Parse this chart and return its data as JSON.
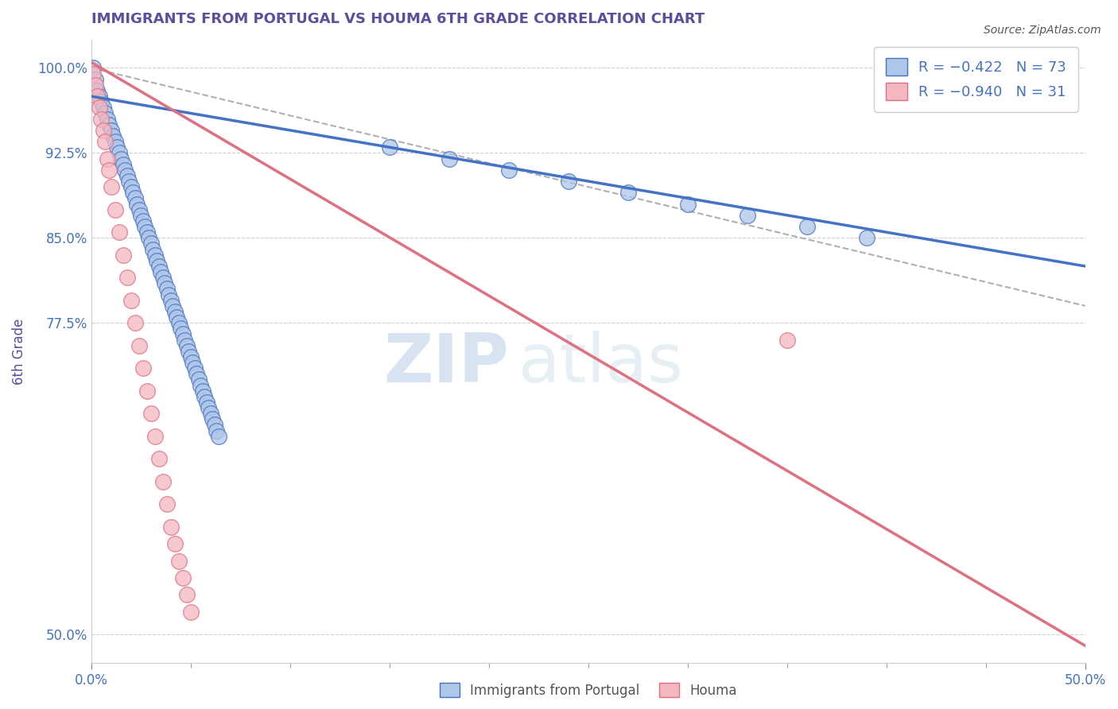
{
  "title": "IMMIGRANTS FROM PORTUGAL VS HOUMA 6TH GRADE CORRELATION CHART",
  "title_color": "#5b4fa0",
  "source_text": "Source: ZipAtlas.com",
  "ylabel": "6th Grade",
  "ylabel_color": "#5b4fa0",
  "xlim": [
    0.0,
    0.5
  ],
  "ylim": [
    0.475,
    1.025
  ],
  "xtick_vals": [
    0.0,
    0.5
  ],
  "xtick_labels": [
    "0.0%",
    "50.0%"
  ],
  "ytick_vals": [
    0.5,
    0.775,
    0.85,
    0.925,
    1.0
  ],
  "ytick_labels": [
    "50.0%",
    "77.5%",
    "85.0%",
    "92.5%",
    "100.0%"
  ],
  "blue_scatter_color": "#aec6e8",
  "pink_scatter_color": "#f4b8c1",
  "blue_line_color": "#4472c4",
  "pink_line_color": "#e07080",
  "dashed_line_color": "#b0b0b0",
  "legend_blue_label": "R = −0.422   N = 73",
  "legend_pink_label": "R = −0.940   N = 31",
  "legend_bottom_blue": "Immigrants from Portugal",
  "legend_bottom_pink": "Houma",
  "watermark": "ZIPatlas",
  "blue_scatter_x": [
    0.001,
    0.002,
    0.003,
    0.004,
    0.005,
    0.006,
    0.007,
    0.008,
    0.009,
    0.01,
    0.011,
    0.012,
    0.013,
    0.014,
    0.015,
    0.016,
    0.017,
    0.018,
    0.019,
    0.02,
    0.021,
    0.022,
    0.023,
    0.024,
    0.025,
    0.026,
    0.027,
    0.028,
    0.029,
    0.03,
    0.031,
    0.032,
    0.033,
    0.034,
    0.035,
    0.036,
    0.037,
    0.038,
    0.039,
    0.04,
    0.041,
    0.042,
    0.043,
    0.044,
    0.045,
    0.046,
    0.047,
    0.048,
    0.049,
    0.05,
    0.051,
    0.052,
    0.053,
    0.054,
    0.055,
    0.056,
    0.057,
    0.058,
    0.059,
    0.06,
    0.061,
    0.062,
    0.063,
    0.064,
    0.15,
    0.18,
    0.21,
    0.24,
    0.27,
    0.3,
    0.33,
    0.36,
    0.39
  ],
  "blue_scatter_y": [
    1.0,
    0.99,
    0.98,
    0.975,
    0.97,
    0.965,
    0.96,
    0.955,
    0.95,
    0.945,
    0.94,
    0.935,
    0.93,
    0.925,
    0.92,
    0.915,
    0.91,
    0.905,
    0.9,
    0.895,
    0.89,
    0.885,
    0.88,
    0.875,
    0.87,
    0.865,
    0.86,
    0.855,
    0.85,
    0.845,
    0.84,
    0.835,
    0.83,
    0.825,
    0.82,
    0.815,
    0.81,
    0.805,
    0.8,
    0.795,
    0.79,
    0.785,
    0.78,
    0.775,
    0.77,
    0.765,
    0.76,
    0.755,
    0.75,
    0.745,
    0.74,
    0.735,
    0.73,
    0.725,
    0.72,
    0.715,
    0.71,
    0.705,
    0.7,
    0.695,
    0.69,
    0.685,
    0.68,
    0.675,
    0.93,
    0.92,
    0.91,
    0.9,
    0.89,
    0.88,
    0.87,
    0.86,
    0.85
  ],
  "pink_scatter_x": [
    0.001,
    0.002,
    0.003,
    0.004,
    0.005,
    0.006,
    0.007,
    0.008,
    0.009,
    0.01,
    0.012,
    0.014,
    0.016,
    0.018,
    0.02,
    0.022,
    0.024,
    0.026,
    0.028,
    0.03,
    0.032,
    0.034,
    0.036,
    0.038,
    0.04,
    0.042,
    0.044,
    0.046,
    0.048,
    0.05,
    0.35
  ],
  "pink_scatter_y": [
    0.995,
    0.985,
    0.975,
    0.965,
    0.955,
    0.945,
    0.935,
    0.92,
    0.91,
    0.895,
    0.875,
    0.855,
    0.835,
    0.815,
    0.795,
    0.775,
    0.755,
    0.735,
    0.715,
    0.695,
    0.675,
    0.655,
    0.635,
    0.615,
    0.595,
    0.58,
    0.565,
    0.55,
    0.535,
    0.52,
    0.76
  ],
  "blue_line_x": [
    0.0,
    0.5
  ],
  "blue_line_y": [
    0.975,
    0.825
  ],
  "pink_line_x": [
    0.0,
    0.5
  ],
  "pink_line_y": [
    1.005,
    0.49
  ],
  "dashed_line_x": [
    0.0,
    0.5
  ],
  "dashed_line_y": [
    1.0,
    0.79
  ]
}
